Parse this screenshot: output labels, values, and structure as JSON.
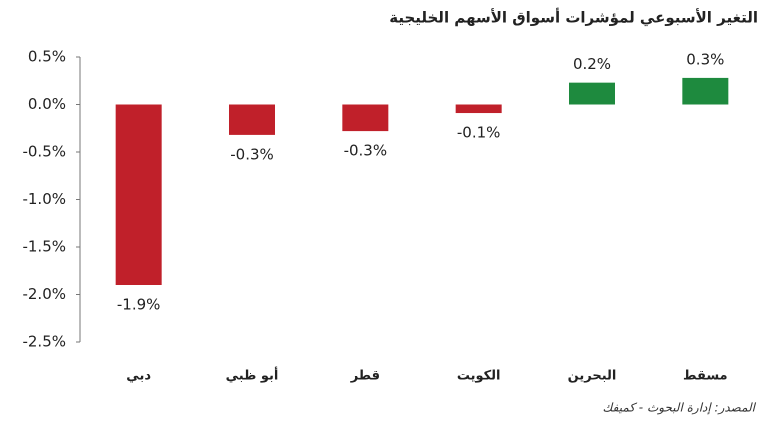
{
  "chart_data": {
    "type": "bar",
    "title": "التغير الأسبوعي لمؤشرات أسواق الأسهم الخليجية",
    "source": "المصدر: إدارة البحوث - كميفك",
    "categories": [
      "دبي",
      "أبو ظبي",
      "قطر",
      "الكويت",
      "البحرين",
      "مسقط"
    ],
    "values": [
      -1.9,
      -0.32,
      -0.28,
      -0.09,
      0.23,
      0.28
    ],
    "value_labels": [
      "-1.9%",
      "-0.3%",
      "-0.3%",
      "-0.1%",
      "0.2%",
      "0.3%"
    ],
    "positive_color": "#1e8a3e",
    "negative_color": "#c0202a",
    "ylim": [
      -2.5,
      0.5
    ],
    "yticks": [
      {
        "value": -2.5,
        "label": "-2.5%"
      },
      {
        "value": -2,
        "label": "-2.0%"
      },
      {
        "value": -1.5,
        "label": "-1.5%"
      },
      {
        "value": -1,
        "label": "-1.0%"
      },
      {
        "value": -0.5,
        "label": "-0.5%"
      },
      {
        "value": 0,
        "label": "0.0%"
      },
      {
        "value": 0.5,
        "label": "0.5%"
      }
    ],
    "grid": false
  }
}
